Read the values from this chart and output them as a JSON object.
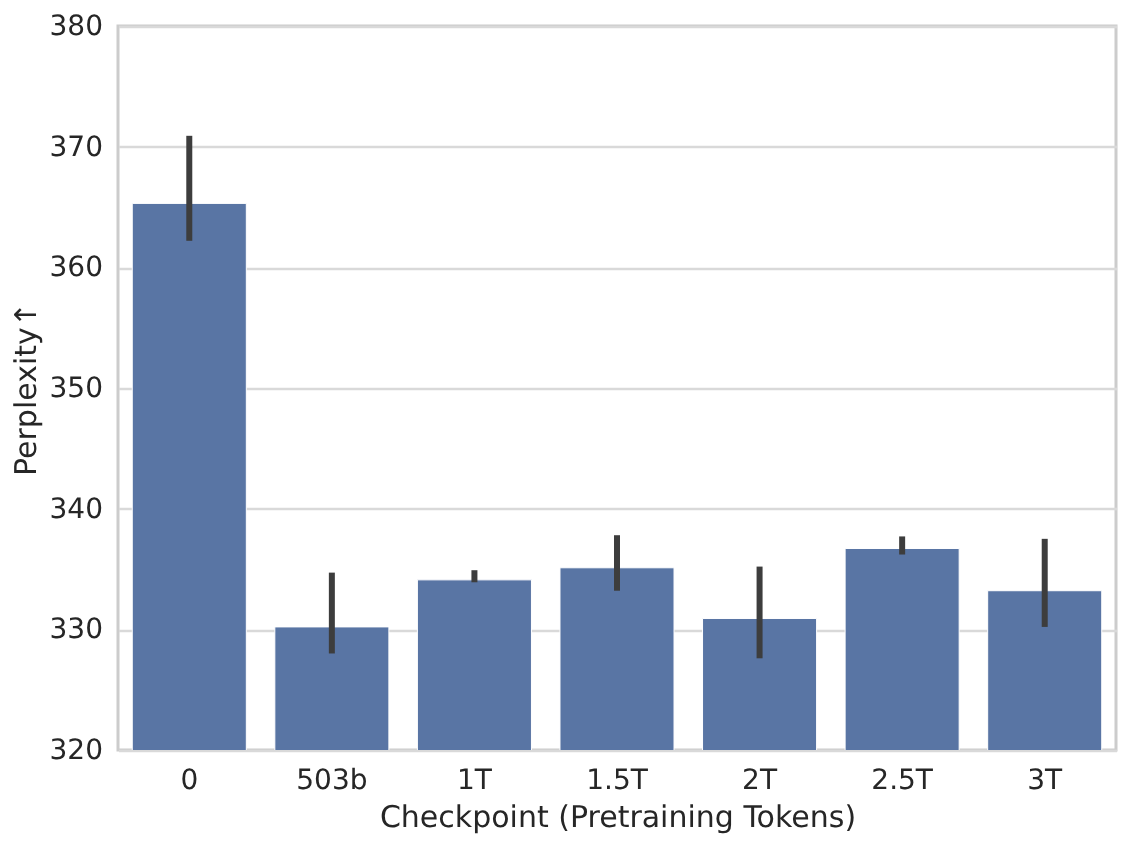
{
  "chart_data": {
    "type": "bar",
    "xlabel": "Checkpoint (Pretraining Tokens)",
    "ylabel": "Perplexity↑",
    "categories": [
      "0",
      "503b",
      "1T",
      "1.5T",
      "2T",
      "2.5T",
      "3T"
    ],
    "values": [
      365.3,
      330.2,
      334.1,
      335.1,
      330.9,
      336.7,
      333.2
    ],
    "errors": [
      [
        362.2,
        370.9
      ],
      [
        328.0,
        334.7
      ],
      [
        333.9,
        334.9
      ],
      [
        333.2,
        337.8
      ],
      [
        327.6,
        335.2
      ],
      [
        336.2,
        337.7
      ],
      [
        330.2,
        337.5
      ]
    ],
    "color": "#5975a4",
    "ylim": [
      320,
      380
    ],
    "yticks": [
      320,
      330,
      340,
      350,
      360,
      370,
      380
    ],
    "grid": "y"
  }
}
